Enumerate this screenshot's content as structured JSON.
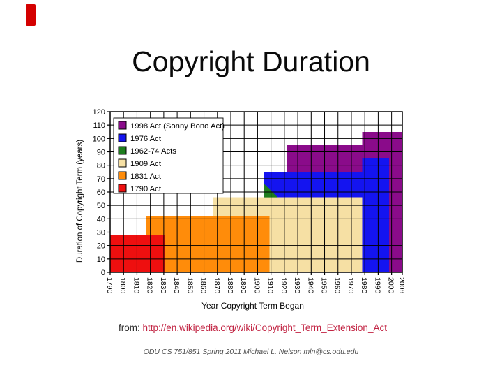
{
  "slide": {
    "title": "Copyright Duration",
    "accent_color": "#d40000"
  },
  "chart_data": {
    "type": "area",
    "title": "",
    "xlabel": "Year Copyright Term Began",
    "ylabel": "Duration of Copyright Term (years)",
    "xlim": [
      1790,
      2008
    ],
    "ylim": [
      0,
      120
    ],
    "x_ticks": [
      1790,
      1800,
      1810,
      1820,
      1830,
      1840,
      1850,
      1860,
      1870,
      1880,
      1890,
      1900,
      1910,
      1920,
      1930,
      1940,
      1950,
      1960,
      1970,
      1980,
      1990,
      2000,
      2008
    ],
    "y_ticks": [
      0,
      10,
      20,
      30,
      40,
      50,
      60,
      70,
      80,
      90,
      100,
      110,
      120
    ],
    "grid": true,
    "legend_position": "top-left",
    "colors": {
      "purple": "#8a0b8a",
      "blue": "#1414f0",
      "green": "#1e7d1e",
      "tan": "#f6e0a4",
      "orange": "#ff8c0a",
      "red": "#ee0f0f"
    },
    "regions": [
      {
        "act": "1909 Act",
        "color": "tan",
        "shape": "rect",
        "x0": 1867,
        "x1": 1978,
        "y0": 0,
        "y1": 56
      },
      {
        "act": "1831 Act",
        "color": "orange",
        "shape": "rect",
        "x0": 1817,
        "x1": 1909,
        "y0": 0,
        "y1": 42
      },
      {
        "act": "1790 Act",
        "color": "red",
        "shape": "rect",
        "x0": 1790,
        "x1": 1831,
        "y0": 0,
        "y1": 28
      },
      {
        "act": "1976 Act",
        "color": "blue",
        "shape": "rect",
        "x0": 1905,
        "x1": 1978,
        "y0": 56,
        "y1": 75
      },
      {
        "act": "1962-74 Acts",
        "color": "green",
        "shape": "polygon",
        "points": [
          [
            1905,
            56
          ],
          [
            1905,
            66
          ],
          [
            1915,
            56
          ]
        ]
      },
      {
        "act": "1998 Act (Sonny Bono Act)",
        "color": "purple",
        "shape": "rect",
        "x0": 1922,
        "x1": 1978,
        "y0": 75,
        "y1": 95
      },
      {
        "act": "1998 Act (Sonny Bono Act)",
        "color": "purple",
        "shape": "rect",
        "x0": 1978,
        "x1": 2008,
        "y0": 0,
        "y1": 105
      },
      {
        "act": "1976 Act",
        "color": "blue",
        "shape": "rect",
        "x0": 1978,
        "x1": 1998,
        "y0": 0,
        "y1": 85
      }
    ],
    "legend": [
      {
        "label": "1998 Act (Sonny Bono Act)",
        "color": "purple"
      },
      {
        "label": "1976 Act",
        "color": "blue"
      },
      {
        "label": "1962-74 Acts",
        "color": "green"
      },
      {
        "label": "1909 Act",
        "color": "tan"
      },
      {
        "label": "1831 Act",
        "color": "orange"
      },
      {
        "label": "1790 Act",
        "color": "red"
      }
    ]
  },
  "footer": {
    "from_label": "from:",
    "link_text": "http://en.wikipedia.org/wiki/Copyright_Term_Extension_Act",
    "link_color": "#c22443",
    "credit": "ODU CS 751/851 Spring 2011 Michael L. Nelson mln@cs.odu.edu"
  }
}
